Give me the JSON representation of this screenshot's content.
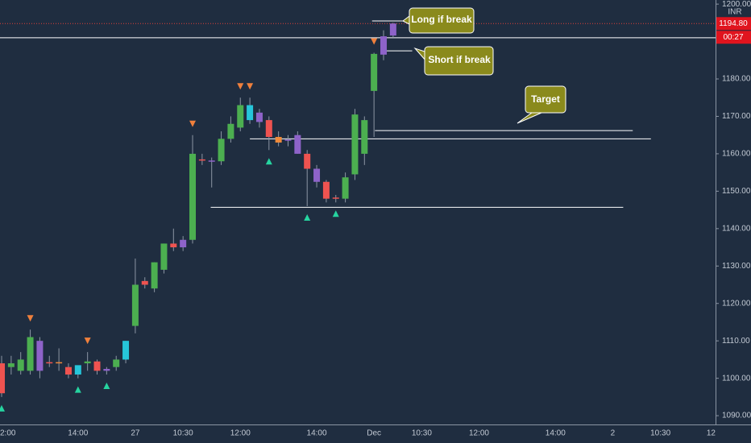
{
  "chart_data": {
    "type": "candlestick",
    "currency": "INR",
    "open": [
      1104,
      1103,
      1102,
      1102,
      1110,
      1104,
      1104,
      1103,
      1101,
      1104,
      1104.5,
      1102,
      1103,
      1105,
      1114,
      1126,
      1124,
      1129,
      1136,
      1137,
      1137,
      1158.5,
      1158,
      1158,
      1164,
      1167,
      1173,
      1171,
      1169,
      1164.5,
      1163.5,
      1165,
      1160,
      1156,
      1152.5,
      1148,
      1148,
      1154.5,
      1160,
      1176.8,
      1186.5,
      1191.6
    ],
    "high": [
      1106,
      1106,
      1107,
      1113,
      1111,
      1106,
      1108,
      1104,
      1103,
      1107,
      1105,
      1103,
      1106,
      1110,
      1132,
      1127,
      1131,
      1136,
      1140,
      1138,
      1165,
      1160,
      1159,
      1166,
      1170,
      1175,
      1175,
      1172,
      1170,
      1166,
      1165,
      1166,
      1161,
      1157,
      1153,
      1149,
      1155,
      1172,
      1170,
      1187,
      1193,
      1195
    ],
    "low": [
      1095,
      1101,
      1101,
      1101,
      1100,
      1103,
      1102,
      1100,
      1100,
      1102,
      1101,
      1101,
      1102,
      1104,
      1112,
      1124,
      1123,
      1128,
      1134,
      1134,
      1136,
      1157,
      1151,
      1157,
      1163,
      1166,
      1168,
      1167,
      1161,
      1162,
      1162,
      1160,
      1146,
      1151,
      1147,
      1147,
      1147,
      1153,
      1157,
      1164.5,
      1185,
      1191
    ],
    "close": [
      1096,
      1104,
      1105,
      1111,
      1102,
      1104.3,
      1104.3,
      1101,
      1103.5,
      1104.5,
      1102,
      1102.5,
      1105,
      1110,
      1125,
      1125,
      1131,
      1136,
      1135,
      1135,
      1160,
      1158.2,
      1158.2,
      1164,
      1168,
      1173,
      1169,
      1168.5,
      1164.5,
      1163,
      1163.8,
      1160,
      1156,
      1152.5,
      1148,
      1148.3,
      1153.7,
      1170.5,
      1169,
      1186.7,
      1191.4,
      1194.8
    ],
    "colors": [
      "#ef5350",
      "#4caf50",
      "#4caf50",
      "#4caf50",
      "#8e63c9",
      "#ef5350",
      "#f08a3a",
      "#ef5350",
      "#26c6da",
      "#4caf50",
      "#ef5350",
      "#8e63c9",
      "#4caf50",
      "#26c6da",
      "#4caf50",
      "#ef5350",
      "#4caf50",
      "#4caf50",
      "#ef5350",
      "#8e63c9",
      "#4caf50",
      "#ef5350",
      "#8e63c9",
      "#4caf50",
      "#4caf50",
      "#4caf50",
      "#26c6da",
      "#8e63c9",
      "#ef5350",
      "#f08a3a",
      "#8e63c9",
      "#8e63c9",
      "#ef5350",
      "#8e63c9",
      "#ef5350",
      "#ef5350",
      "#4caf50",
      "#4caf50",
      "#4caf50",
      "#4caf50",
      "#8e63c9",
      "#8e63c9"
    ],
    "signals_up": [
      0,
      8,
      11,
      28,
      32,
      35
    ],
    "signals_down": [
      3,
      9,
      20,
      25,
      26,
      39
    ],
    "xlim": [
      -0.17,
      74.77
    ],
    "xticks": [
      {
        "value": 0,
        "label": "2:00"
      },
      {
        "value": 8,
        "label": "14:00"
      },
      {
        "value": 14,
        "label": "27"
      },
      {
        "value": 19,
        "label": "10:30"
      },
      {
        "value": 25,
        "label": "12:00"
      },
      {
        "value": 33,
        "label": "14:00"
      },
      {
        "value": 39,
        "label": "Dec"
      },
      {
        "value": 44,
        "label": "10:30"
      },
      {
        "value": 50,
        "label": "12:00"
      },
      {
        "value": 58,
        "label": "14:00"
      },
      {
        "value": 64,
        "label": "2"
      },
      {
        "value": 69,
        "label": "10:30"
      },
      {
        "value": 74.6,
        "label": "12"
      }
    ],
    "ylim": [
      1082.7,
      1201.1
    ],
    "yticks": [
      {
        "value": 1090,
        "label": "1090.00"
      },
      {
        "value": 1100,
        "label": "1100.00"
      },
      {
        "value": 1110,
        "label": "1110.00"
      },
      {
        "value": 1120,
        "label": "1120.00"
      },
      {
        "value": 1130,
        "label": "1130.00"
      },
      {
        "value": 1140,
        "label": "1140.00"
      },
      {
        "value": 1150,
        "label": "1150.00"
      },
      {
        "value": 1160,
        "label": "1160.00"
      },
      {
        "value": 1170,
        "label": "1170.00"
      },
      {
        "value": 1180,
        "label": "1180.00"
      },
      {
        "value": 1190,
        "label": "1190.00"
      },
      {
        "value": 1200,
        "label": "1200.00"
      }
    ],
    "levels": [
      {
        "value": 1191,
        "from": -0.17,
        "to": 74.77
      },
      {
        "value": 1195.5,
        "from": 38.8,
        "to": 42
      },
      {
        "value": 1187.5,
        "from": 40.2,
        "to": 43
      },
      {
        "value": 1166.2,
        "from": 39.1,
        "to": 66.1
      },
      {
        "value": 1164,
        "from": 26,
        "to": 68
      },
      {
        "value": 1145.7,
        "from": 21.9,
        "to": 65.1
      }
    ],
    "last_price": {
      "value": 1194.8,
      "label": "1194.80"
    },
    "countdown": "00:27",
    "annotations": [
      "Long if break",
      "Short if break",
      "Target"
    ]
  }
}
